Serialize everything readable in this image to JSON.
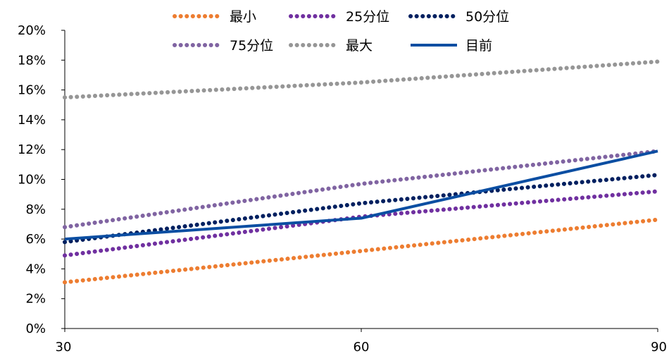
{
  "chart_data": {
    "type": "line",
    "x": [
      30,
      60,
      90
    ],
    "xticks": [
      "30",
      "60",
      "90"
    ],
    "yticks": [
      "0%",
      "2%",
      "4%",
      "6%",
      "8%",
      "10%",
      "12%",
      "14%",
      "16%",
      "18%",
      "20%"
    ],
    "ylim": [
      0,
      20
    ],
    "xlim": [
      30,
      90
    ],
    "grid": false,
    "legend_position": "top",
    "series": [
      {
        "name": "最小",
        "values": [
          3.1,
          5.2,
          7.3
        ],
        "color": "#ED7D31",
        "style": "dotted"
      },
      {
        "name": "25分位",
        "values": [
          4.9,
          7.5,
          9.2
        ],
        "color": "#7030A0",
        "style": "dotted"
      },
      {
        "name": "50分位",
        "values": [
          5.8,
          8.4,
          10.3
        ],
        "color": "#002060",
        "style": "dotted"
      },
      {
        "name": "75分位",
        "values": [
          6.8,
          9.7,
          11.9
        ],
        "color": "#8064A2",
        "style": "dotted"
      },
      {
        "name": "最大",
        "values": [
          15.5,
          16.5,
          17.9
        ],
        "color": "#969696",
        "style": "dotted"
      },
      {
        "name": "目前",
        "values": [
          6.0,
          7.4,
          11.9
        ],
        "color": "#0B4EA2",
        "style": "solid"
      }
    ]
  }
}
